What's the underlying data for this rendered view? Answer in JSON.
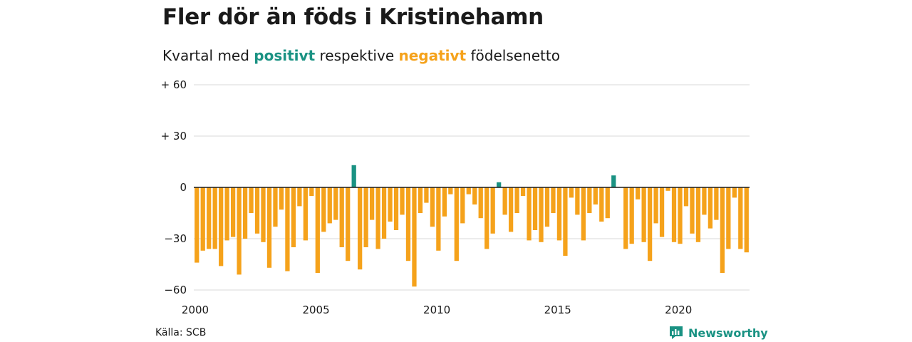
{
  "title": "Fler dör än föds i Kristinehamn",
  "subtitle": {
    "prefix": "Kvartal med",
    "positive_word": "positivt",
    "middle": "respektive",
    "negative_word": "negativt",
    "suffix": "födelsenetto"
  },
  "source": "Källa: SCB",
  "brand": "Newsworthy",
  "icons": [
    "newsworthy-logo-icon"
  ],
  "colors": {
    "positive": "#1a9283",
    "negative": "#f5a21b",
    "grid": "#d9d9d9",
    "zero_line": "#1a1a1a"
  },
  "chart_data": {
    "type": "bar",
    "x_label_text": [
      "2000",
      "2005",
      "2010",
      "2015",
      "2020"
    ],
    "x_label_values": [
      2000,
      2005,
      2010,
      2015,
      2020
    ],
    "y_tick_labels": [
      "+ 60",
      "+ 30",
      "0",
      "−30",
      "−60"
    ],
    "y_tick_values": [
      60,
      30,
      0,
      -30,
      -60
    ],
    "ylim": [
      -60,
      60
    ],
    "grid": true,
    "series": [
      {
        "x": [
          2000.0,
          2000.25,
          2000.5,
          2000.75,
          2001.0,
          2001.25,
          2001.5,
          2001.75,
          2002.0,
          2002.25,
          2002.5,
          2002.75,
          2003.0,
          2003.25,
          2003.5,
          2003.75,
          2004.0,
          2004.25,
          2004.5,
          2004.75,
          2005.0,
          2005.25,
          2005.5,
          2005.75,
          2006.0,
          2006.25,
          2006.5,
          2006.75,
          2007.0,
          2007.25,
          2007.5,
          2007.75,
          2008.0,
          2008.25,
          2008.5,
          2008.75,
          2009.0,
          2009.25,
          2009.5,
          2009.75,
          2010.0,
          2010.25,
          2010.5,
          2010.75,
          2011.0,
          2011.25,
          2011.5,
          2011.75,
          2012.0,
          2012.25,
          2012.5,
          2012.75,
          2013.0,
          2013.25,
          2013.5,
          2013.75,
          2014.0,
          2014.25,
          2014.5,
          2014.75,
          2015.0,
          2015.25,
          2015.5,
          2015.75,
          2016.0,
          2016.25,
          2016.5,
          2016.75,
          2017.0,
          2017.25,
          2017.5,
          2017.75,
          2018.0,
          2018.25,
          2018.5,
          2018.75,
          2019.0,
          2019.25,
          2019.5,
          2019.75,
          2020.0,
          2020.25,
          2020.5,
          2020.75,
          2021.0,
          2021.25,
          2021.5,
          2021.75,
          2022.0,
          2022.25,
          2022.5,
          2022.75
        ],
        "values": [
          -44,
          -37,
          -36,
          -36,
          -46,
          -31,
          -29,
          -51,
          -30,
          -15,
          -27,
          -32,
          -47,
          -23,
          -13,
          -49,
          -35,
          -11,
          -31,
          -5,
          -50,
          -26,
          -21,
          -19,
          -35,
          -43,
          13,
          -48,
          -35,
          -19,
          -36,
          -30,
          -20,
          -25,
          -16,
          -43,
          -58,
          -15,
          -9,
          -23,
          -37,
          -17,
          -4,
          -43,
          -21,
          -4,
          -10,
          -18,
          -36,
          -27,
          3,
          -16,
          -26,
          -15,
          -5,
          -31,
          -25,
          -32,
          -23,
          -15,
          -31,
          -40,
          -6,
          -16,
          -31,
          -15,
          -10,
          -20,
          -18,
          7,
          0,
          -36,
          -33,
          -7,
          -32,
          -43,
          -21,
          -29,
          -2,
          -32,
          -33,
          -11,
          -27,
          -32,
          -16,
          -24,
          -19,
          -50,
          -36,
          -6,
          -36,
          -38
        ]
      }
    ]
  }
}
